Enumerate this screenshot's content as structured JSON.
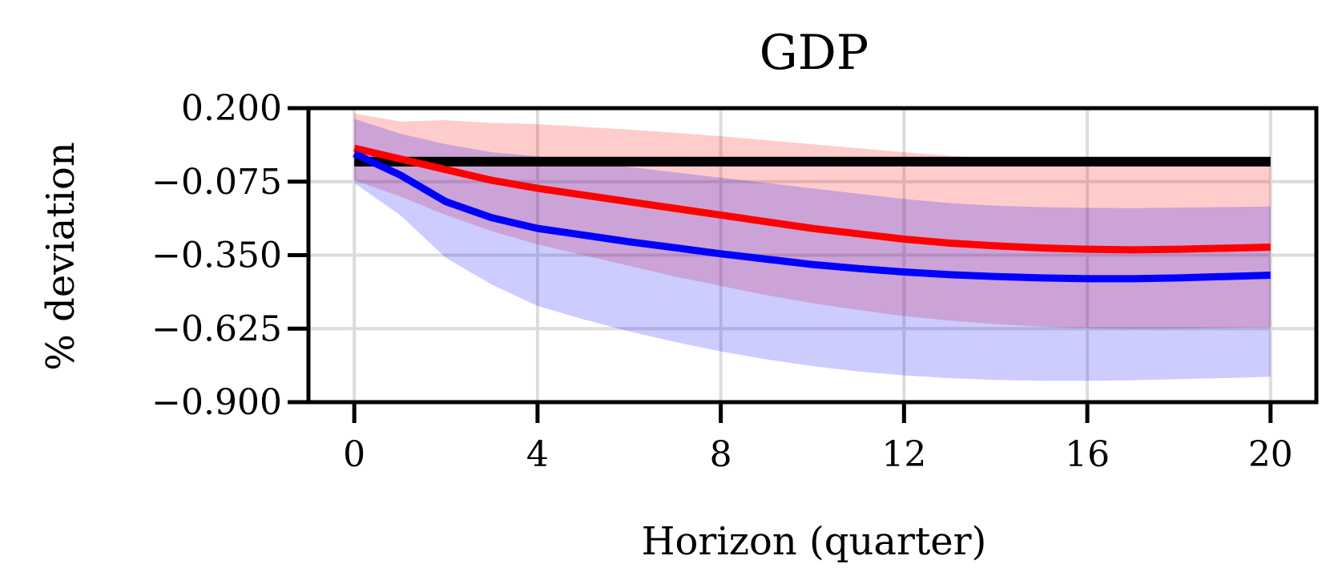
{
  "chart_data": {
    "type": "line",
    "title": "GDP",
    "xlabel": "Horizon (quarter)",
    "ylabel": "% deviation",
    "xlim": [
      -1,
      21
    ],
    "ylim": [
      -0.9,
      0.2
    ],
    "xticks": [
      0,
      4,
      8,
      12,
      16,
      20
    ],
    "yticks": [
      0.2,
      -0.075,
      -0.35,
      -0.625,
      -0.9
    ],
    "yticklabels": [
      "0.200",
      "−0.075",
      "−0.350",
      "−0.625",
      "−0.900"
    ],
    "grid": true,
    "x": [
      0,
      1,
      2,
      3,
      4,
      5,
      6,
      7,
      8,
      9,
      10,
      11,
      12,
      13,
      14,
      15,
      16,
      17,
      18,
      19,
      20
    ],
    "zero_line": {
      "value": 0.0,
      "color": "#000000"
    },
    "series": [
      {
        "color": "#ff0000",
        "band_color": "#ff0000",
        "values": [
          0.05,
          0.01,
          -0.03,
          -0.07,
          -0.1,
          -0.125,
          -0.15,
          -0.175,
          -0.2,
          -0.225,
          -0.25,
          -0.27,
          -0.29,
          -0.305,
          -0.315,
          -0.323,
          -0.328,
          -0.33,
          -0.328,
          -0.324,
          -0.32
        ],
        "lower": [
          -0.07,
          -0.13,
          -0.2,
          -0.26,
          -0.31,
          -0.35,
          -0.39,
          -0.43,
          -0.465,
          -0.5,
          -0.53,
          -0.555,
          -0.578,
          -0.595,
          -0.608,
          -0.618,
          -0.624,
          -0.626,
          -0.625,
          -0.622,
          -0.62
        ],
        "upper": [
          0.18,
          0.15,
          0.155,
          0.145,
          0.14,
          0.13,
          0.12,
          0.108,
          0.095,
          0.08,
          0.065,
          0.05,
          0.035,
          0.022,
          0.01,
          0.0,
          -0.008,
          -0.01,
          -0.01,
          -0.01,
          -0.01
        ]
      },
      {
        "color": "#0000ff",
        "band_color": "#0000ff",
        "values": [
          0.03,
          -0.05,
          -0.15,
          -0.21,
          -0.25,
          -0.275,
          -0.3,
          -0.322,
          -0.345,
          -0.365,
          -0.385,
          -0.4,
          -0.413,
          -0.423,
          -0.43,
          -0.435,
          -0.438,
          -0.438,
          -0.435,
          -0.43,
          -0.425
        ],
        "lower": [
          -0.08,
          -0.2,
          -0.36,
          -0.46,
          -0.54,
          -0.59,
          -0.635,
          -0.675,
          -0.71,
          -0.74,
          -0.765,
          -0.785,
          -0.8,
          -0.81,
          -0.817,
          -0.82,
          -0.82,
          -0.818,
          -0.814,
          -0.81,
          -0.805
        ],
        "upper": [
          0.16,
          0.105,
          0.065,
          0.035,
          0.02,
          0.0,
          -0.02,
          -0.04,
          -0.06,
          -0.08,
          -0.1,
          -0.12,
          -0.14,
          -0.155,
          -0.165,
          -0.17,
          -0.173,
          -0.174,
          -0.172,
          -0.17,
          -0.168
        ]
      }
    ]
  }
}
